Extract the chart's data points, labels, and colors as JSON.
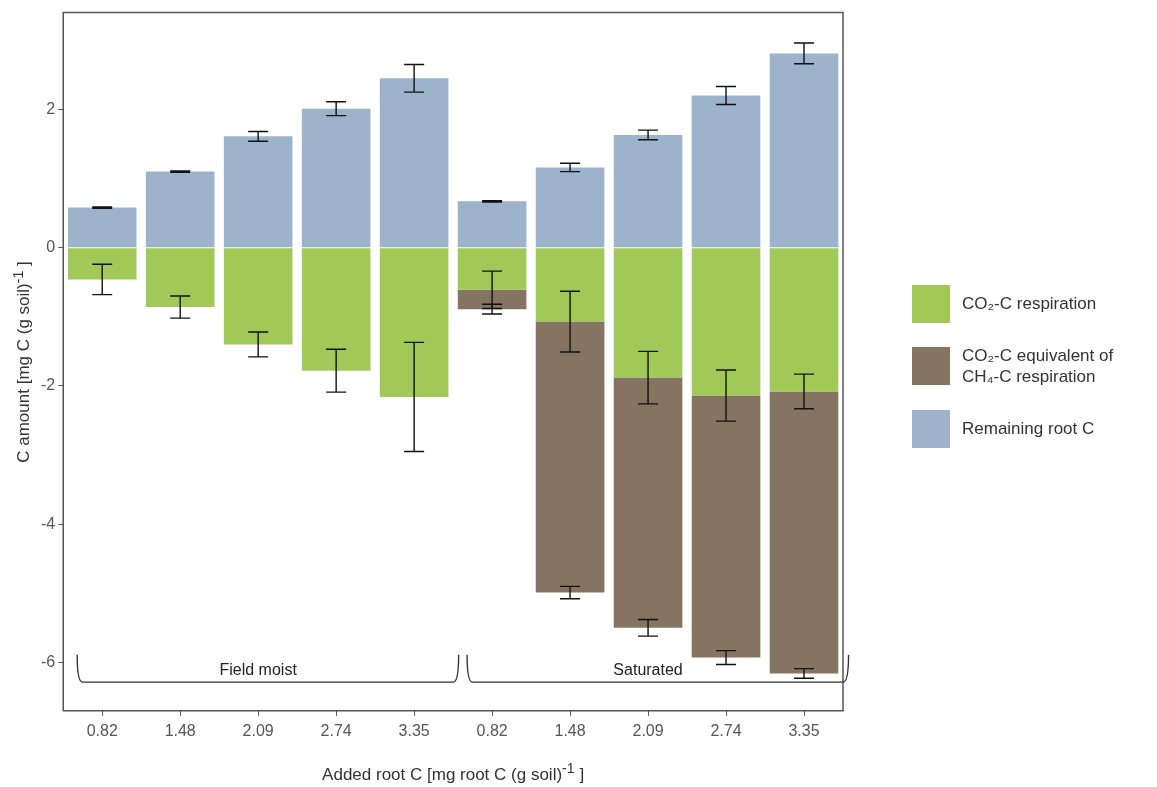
{
  "chart_data": {
    "type": "bar",
    "stacked": true,
    "xlabel": "Added root C [mg root C (g soil)$^{-1}$ ]",
    "ylabel": "C amount [mg C (g soil)$^{-1}$ ]",
    "categories": [
      "0.82",
      "1.48",
      "2.09",
      "2.74",
      "3.35",
      "0.82",
      "1.48",
      "2.09",
      "2.74",
      "3.35"
    ],
    "series": [
      {
        "name": "CO₂-C respiration",
        "color": "#a0c957",
        "values": [
          -0.46,
          -0.86,
          -1.4,
          -1.78,
          -2.16,
          -0.61,
          -1.07,
          -1.88,
          -2.14,
          -2.08
        ],
        "errors": [
          0.22,
          0.16,
          0.18,
          0.31,
          0.79,
          0.27,
          0.44,
          0.38,
          0.37,
          0.25
        ]
      },
      {
        "name": "CO₂-C equivalent of CH₄-C respiration",
        "color": "#857461",
        "values": [
          null,
          null,
          null,
          null,
          null,
          -0.28,
          -3.92,
          -3.62,
          -3.79,
          -4.08
        ],
        "errors": [
          null,
          null,
          null,
          null,
          null,
          0.07,
          0.09,
          0.12,
          0.1,
          0.07
        ]
      },
      {
        "name": "Remaining root C",
        "color": "#9db3cb",
        "values": [
          0.58,
          1.1,
          1.61,
          2.01,
          2.45,
          0.67,
          1.16,
          1.63,
          2.2,
          2.81
        ],
        "errors": [
          0.01,
          0.01,
          0.07,
          0.1,
          0.2,
          0.01,
          0.06,
          0.07,
          0.13,
          0.15
        ]
      }
    ],
    "ylim": [
      -6.7,
      3.4
    ],
    "yticks": [
      -6,
      -4,
      -2,
      0,
      2
    ],
    "grid": false,
    "legend": "right",
    "annotations": [
      "Field moist",
      "Saturated"
    ]
  }
}
